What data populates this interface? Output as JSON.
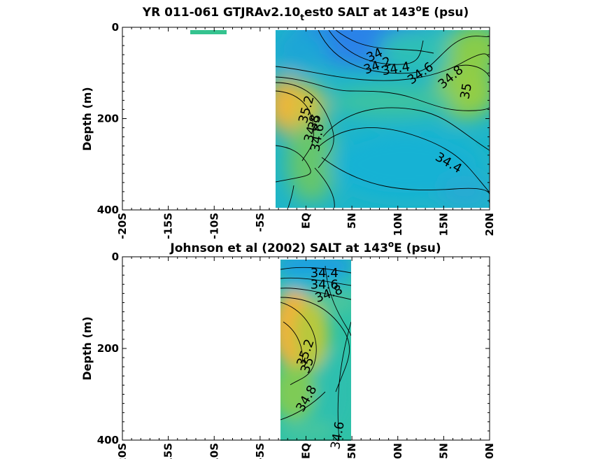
{
  "chart_data": [
    {
      "type": "heatmap",
      "title": "YR 011-061 GTJRAv2.10_test0 SALT at 143°E (psu)",
      "title_parts": {
        "main": "YR 011-061 GTJRAv2.10",
        "subscript": "t",
        "rest": "est0 SALT at 143",
        "superscript": "o",
        "tail": "E (psu)"
      },
      "ylabel": "Depth (m)",
      "xlabel": "",
      "xlim": [
        -20,
        20
      ],
      "ylim": [
        400,
        0
      ],
      "y_reversed": true,
      "xticks": [
        -20,
        -15,
        -10,
        -5,
        0,
        5,
        10,
        15,
        20
      ],
      "xtick_labels": [
        "-20S",
        "-15S",
        "-10S",
        "-5S",
        "EQ",
        "5N",
        "10N",
        "15N",
        "20N"
      ],
      "yticks": [
        0,
        200,
        400
      ],
      "ytick_labels": [
        "0",
        "200",
        "400"
      ],
      "data_extent_x": [
        -3.3,
        20
      ],
      "data_extent_y": [
        5,
        395
      ],
      "extra_patch": {
        "x": [
          -12.3,
          -8.3
        ],
        "depth": [
          5,
          15
        ],
        "value": 34.3
      },
      "contour_levels": [
        34.0,
        34.2,
        34.4,
        34.6,
        34.8,
        35.0,
        35.2
      ],
      "contour_labels": [
        {
          "text": "34",
          "lat": 7.5,
          "depth": 62,
          "rotation": -25
        },
        {
          "text": "34.2",
          "lat": 7.8,
          "depth": 85,
          "rotation": -20
        },
        {
          "text": "34.4",
          "lat": 9.8,
          "depth": 92,
          "rotation": -10
        },
        {
          "text": "34.6",
          "lat": 12.5,
          "depth": 102,
          "rotation": -35
        },
        {
          "text": "34.8",
          "lat": 15.8,
          "depth": 110,
          "rotation": -40
        },
        {
          "text": "35",
          "lat": 17.5,
          "depth": 140,
          "rotation": -80
        },
        {
          "text": "35.2",
          "lat": 0.1,
          "depth": 180,
          "rotation": -75
        },
        {
          "text": "35",
          "lat": 1.0,
          "depth": 208,
          "rotation": -70
        },
        {
          "text": "34.8",
          "lat": 0.7,
          "depth": 222,
          "rotation": -75
        },
        {
          "text": "34.6",
          "lat": 1.3,
          "depth": 242,
          "rotation": -80
        },
        {
          "text": "34.4",
          "lat": 15.5,
          "depth": 298,
          "rotation": 30
        }
      ],
      "colormap": "parula",
      "value_range": [
        34.0,
        35.4
      ]
    },
    {
      "type": "heatmap",
      "title": "Johnson et al (2002) SALT at 143°E (psu)",
      "title_parts": {
        "main": "Johnson et al (2002) SALT at 143",
        "superscript": "o",
        "tail": "E (psu)"
      },
      "ylabel": "Depth (m)",
      "xlabel": "",
      "xlim": [
        -20,
        20
      ],
      "ylim": [
        400,
        0
      ],
      "y_reversed": true,
      "xticks": [
        -20,
        -15,
        -10,
        -5,
        0,
        5,
        10,
        15,
        20
      ],
      "xtick_labels": [
        "-20S",
        "-15S",
        "-10S",
        "-5S",
        "EQ",
        "5N",
        "10N",
        "15N",
        "20N"
      ],
      "yticks": [
        0,
        200,
        400
      ],
      "ytick_labels": [
        "0",
        "200",
        "400"
      ],
      "data_extent_x": [
        -2.8,
        5
      ],
      "data_extent_y": [
        5,
        400
      ],
      "contour_levels": [
        34.4,
        34.6,
        34.8,
        35.0,
        35.2
      ],
      "contour_labels": [
        {
          "text": "34.4",
          "lat": 2.0,
          "depth": 37,
          "rotation": 0
        },
        {
          "text": "34.6",
          "lat": 2.0,
          "depth": 62,
          "rotation": 0
        },
        {
          "text": "34.8",
          "lat": 2.5,
          "depth": 82,
          "rotation": -20
        },
        {
          "text": "35.2",
          "lat": 0.0,
          "depth": 210,
          "rotation": -70
        },
        {
          "text": "35",
          "lat": 0.2,
          "depth": 237,
          "rotation": -70
        },
        {
          "text": "34.8",
          "lat": 0.1,
          "depth": 310,
          "rotation": -60
        },
        {
          "text": "34.6",
          "lat": 3.5,
          "depth": 390,
          "rotation": -80
        }
      ],
      "colormap": "parula",
      "value_range": [
        34.0,
        35.4
      ]
    }
  ]
}
